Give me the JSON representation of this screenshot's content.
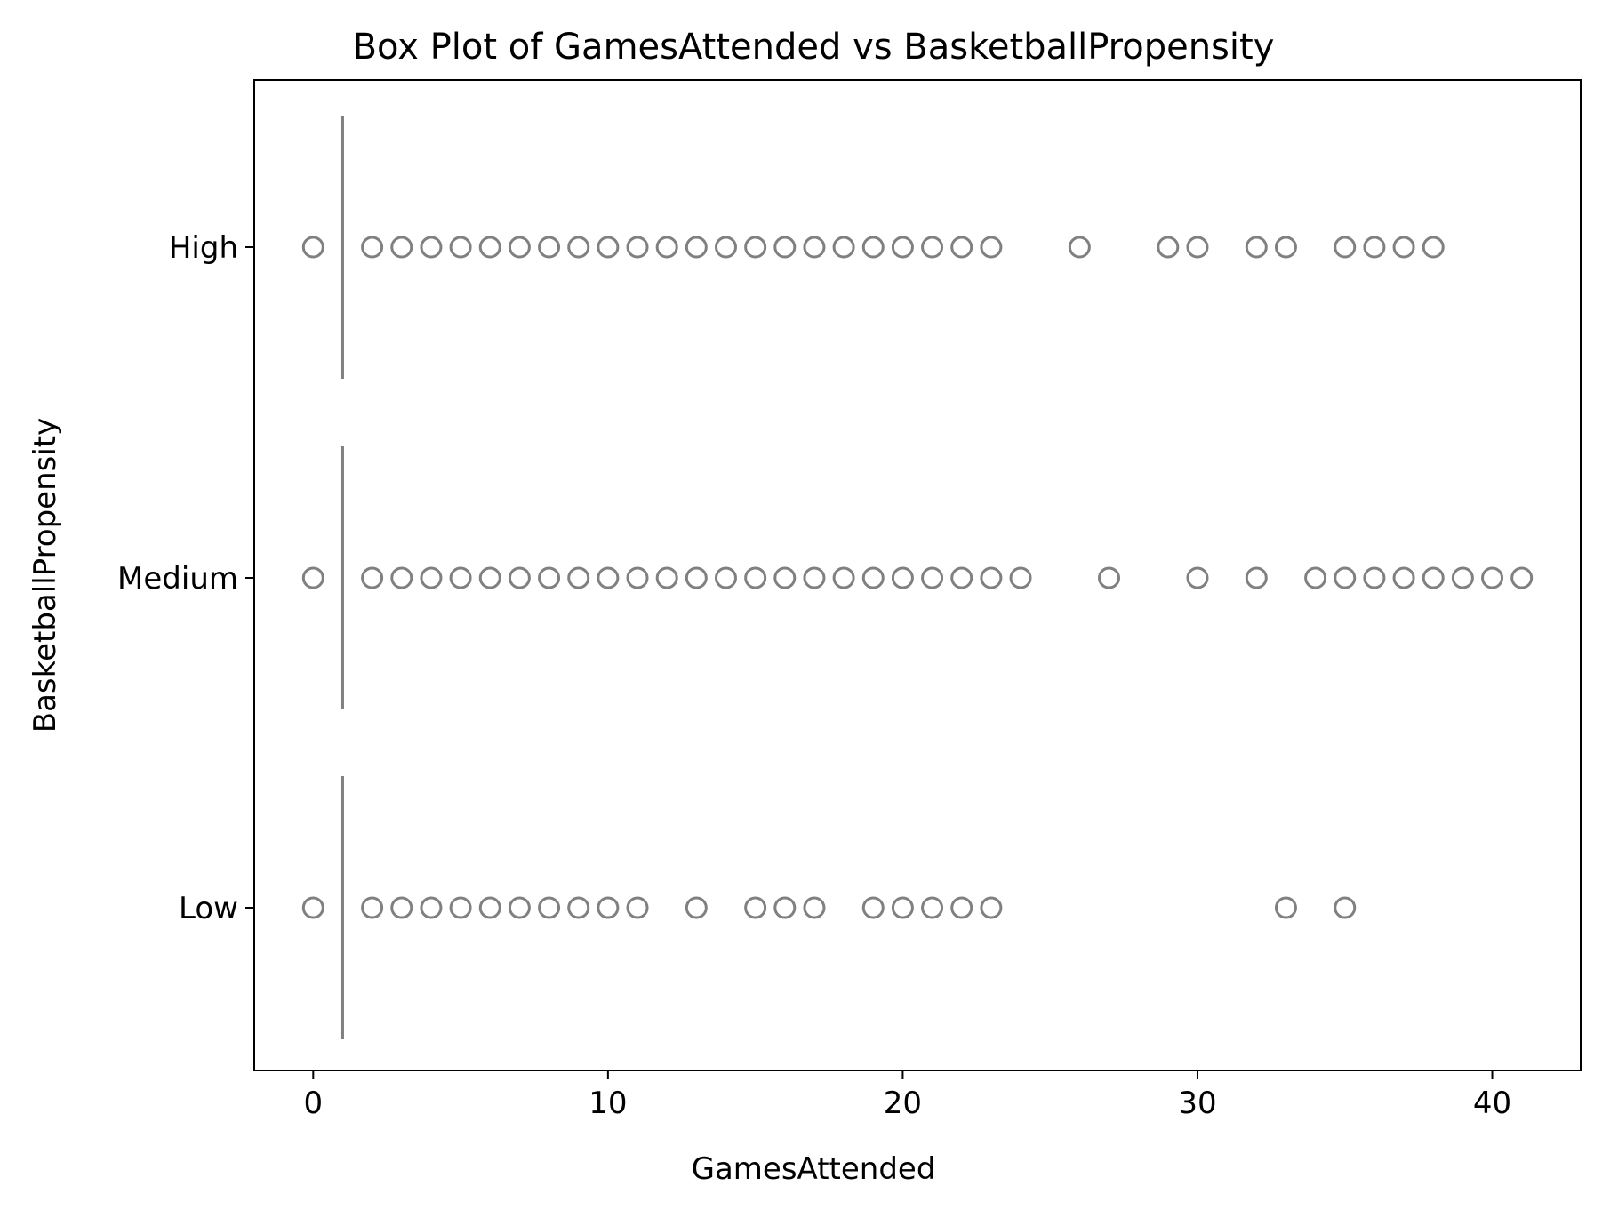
{
  "chart_data": {
    "type": "box",
    "orientation": "horizontal",
    "title": "Box Plot of GamesAttended vs BasketballPropensity",
    "xlabel": "GamesAttended",
    "ylabel": "BasketballPropensity",
    "xlim": [
      -2,
      43
    ],
    "xticks": [
      0,
      10,
      20,
      30,
      40
    ],
    "grid": false,
    "legend": "none",
    "color": "#808080",
    "categories": [
      "High",
      "Medium",
      "Low"
    ],
    "series": [
      {
        "category": "High",
        "q1": 1,
        "median": 1,
        "q3": 1,
        "whisker_low": 1,
        "whisker_high": 1,
        "outliers": [
          0,
          2,
          3,
          4,
          5,
          6,
          7,
          8,
          9,
          10,
          11,
          12,
          13,
          14,
          15,
          16,
          17,
          18,
          19,
          20,
          21,
          22,
          23,
          26,
          29,
          30,
          32,
          33,
          35,
          36,
          37,
          38
        ]
      },
      {
        "category": "Medium",
        "q1": 1,
        "median": 1,
        "q3": 1,
        "whisker_low": 1,
        "whisker_high": 1,
        "outliers": [
          0,
          2,
          3,
          4,
          5,
          6,
          7,
          8,
          9,
          10,
          11,
          12,
          13,
          14,
          15,
          16,
          17,
          18,
          19,
          20,
          21,
          22,
          23,
          24,
          27,
          30,
          32,
          34,
          35,
          36,
          37,
          38,
          39,
          40,
          41
        ]
      },
      {
        "category": "Low",
        "q1": 1,
        "median": 1,
        "q3": 1,
        "whisker_low": 1,
        "whisker_high": 1,
        "outliers": [
          0,
          2,
          3,
          4,
          5,
          6,
          7,
          8,
          9,
          10,
          11,
          13,
          15,
          16,
          17,
          19,
          20,
          21,
          22,
          23,
          33,
          35
        ]
      }
    ]
  }
}
